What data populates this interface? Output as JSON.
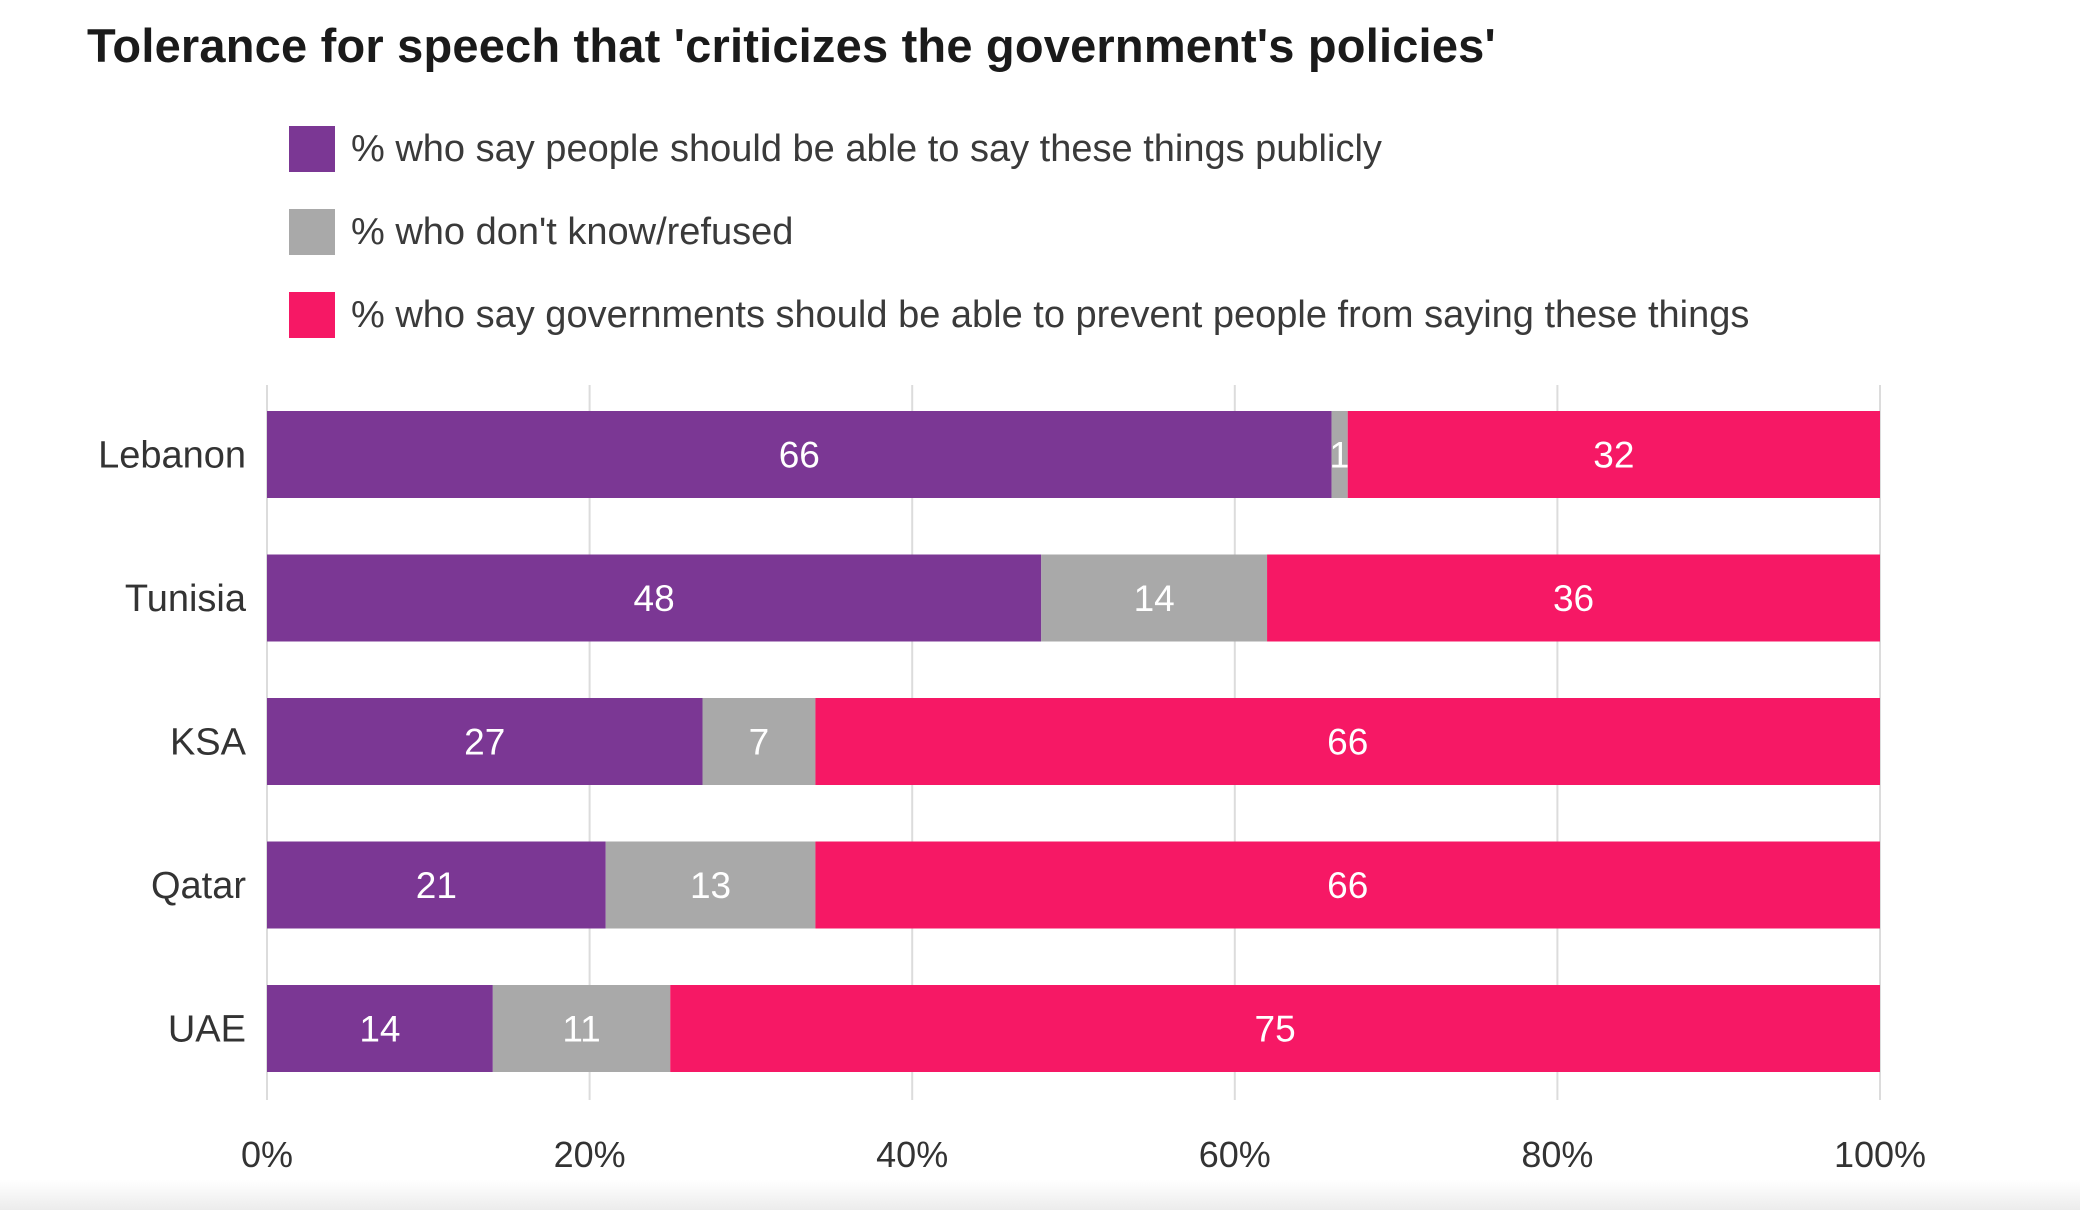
{
  "chart_data": {
    "type": "bar",
    "orientation": "horizontal",
    "stacked": true,
    "title": "Tolerance for speech that 'criticizes the government's policies'",
    "categories": [
      "Lebanon",
      "Tunisia",
      "KSA",
      "Qatar",
      "UAE"
    ],
    "series": [
      {
        "name": "% who say people should be able to say these things publicly",
        "color": "#7b3794",
        "values": [
          66,
          48,
          27,
          21,
          14
        ]
      },
      {
        "name": "% who don't know/refused",
        "color": "#a9a9a9",
        "values": [
          1,
          14,
          7,
          13,
          11
        ]
      },
      {
        "name": "% who say governments should be able to prevent people from saying these things",
        "color": "#f61865",
        "values": [
          32,
          36,
          66,
          66,
          75
        ]
      }
    ],
    "xlim": [
      0,
      100
    ],
    "xticks": [
      "0%",
      "20%",
      "40%",
      "60%",
      "80%",
      "100%"
    ],
    "grid": true,
    "legend": "top"
  }
}
